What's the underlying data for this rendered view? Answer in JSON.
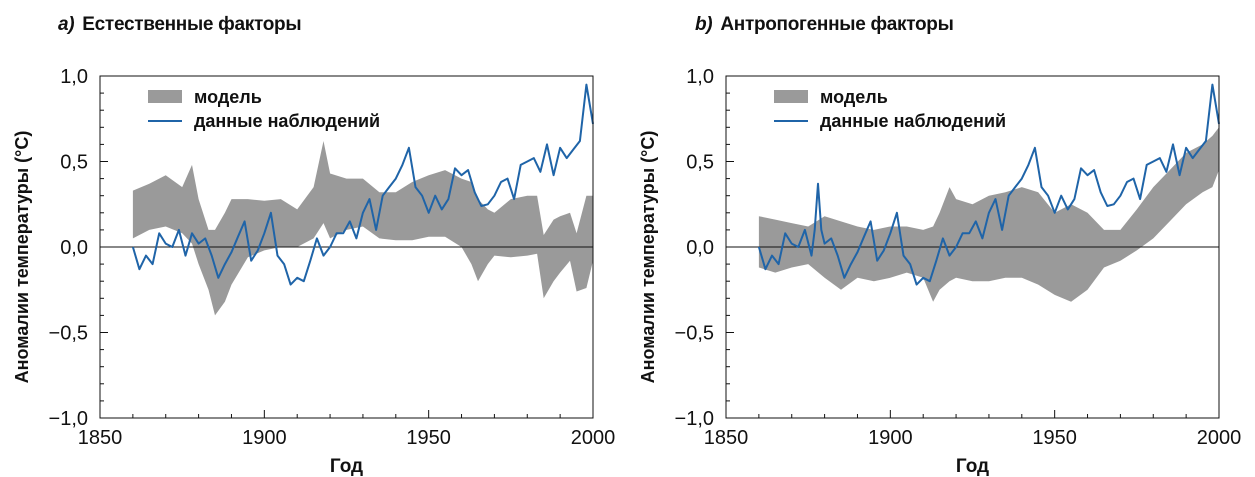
{
  "colors": {
    "model": "#9a9a9a",
    "observations": "#1f64a8",
    "axis": "#111111"
  },
  "chart_data": [
    {
      "type": "area",
      "panel_letter": "a)",
      "title": "Естественные факторы",
      "xlabel": "Год",
      "ylabel": "Аномалии температуры (°C)",
      "xlim": [
        1850,
        2000
      ],
      "ylim": [
        -1.0,
        1.0
      ],
      "xticks": [
        1850,
        1900,
        1950,
        2000
      ],
      "xtick_labels": [
        "1850",
        "1900",
        "1950",
        "2000"
      ],
      "yticks": [
        1.0,
        0.5,
        0.0,
        -0.5,
        -1.0
      ],
      "ytick_labels": [
        "1,0",
        "0,5",
        "0,0",
        "−0,5",
        "−1,0"
      ],
      "legend": {
        "position": "top-left",
        "entries": [
          "модель",
          "данные наблюдений"
        ]
      },
      "series": [
        {
          "name": "модель",
          "kind": "band",
          "x": [
            1860,
            1865,
            1870,
            1875,
            1878,
            1880,
            1883,
            1885,
            1888,
            1890,
            1895,
            1900,
            1905,
            1910,
            1915,
            1918,
            1920,
            1925,
            1930,
            1935,
            1940,
            1945,
            1950,
            1955,
            1960,
            1963,
            1965,
            1968,
            1970,
            1975,
            1980,
            1983,
            1985,
            1988,
            1990,
            1993,
            1995,
            1998,
            2000
          ],
          "upper": [
            0.33,
            0.37,
            0.42,
            0.35,
            0.48,
            0.28,
            0.1,
            0.1,
            0.2,
            0.28,
            0.28,
            0.27,
            0.28,
            0.22,
            0.35,
            0.62,
            0.43,
            0.4,
            0.4,
            0.32,
            0.32,
            0.38,
            0.42,
            0.45,
            0.4,
            0.38,
            0.28,
            0.22,
            0.2,
            0.28,
            0.3,
            0.3,
            0.07,
            0.16,
            0.18,
            0.2,
            0.08,
            0.3,
            0.3
          ],
          "lower": [
            0.05,
            0.1,
            0.12,
            0.08,
            0.02,
            -0.1,
            -0.25,
            -0.4,
            -0.32,
            -0.22,
            -0.06,
            -0.02,
            0.0,
            0.0,
            0.05,
            0.14,
            0.05,
            0.1,
            0.12,
            0.05,
            0.04,
            0.04,
            0.06,
            0.06,
            0.0,
            -0.1,
            -0.2,
            -0.1,
            -0.05,
            -0.06,
            -0.05,
            -0.04,
            -0.3,
            -0.2,
            -0.15,
            -0.08,
            -0.26,
            -0.24,
            -0.08
          ]
        },
        {
          "name": "данные наблюдений",
          "kind": "line",
          "x": [
            1860,
            1862,
            1864,
            1866,
            1868,
            1870,
            1872,
            1874,
            1876,
            1878,
            1880,
            1882,
            1884,
            1886,
            1888,
            1890,
            1892,
            1894,
            1896,
            1898,
            1900,
            1902,
            1904,
            1906,
            1908,
            1910,
            1912,
            1914,
            1916,
            1918,
            1920,
            1922,
            1924,
            1926,
            1928,
            1930,
            1932,
            1934,
            1936,
            1938,
            1940,
            1942,
            1944,
            1946,
            1948,
            1950,
            1952,
            1954,
            1956,
            1958,
            1960,
            1962,
            1964,
            1966,
            1968,
            1970,
            1972,
            1974,
            1976,
            1978,
            1980,
            1982,
            1984,
            1986,
            1988,
            1990,
            1992,
            1994,
            1996,
            1998,
            2000
          ],
          "y": [
            0.0,
            -0.13,
            -0.05,
            -0.1,
            0.08,
            0.02,
            0.0,
            0.1,
            -0.05,
            0.08,
            0.02,
            0.05,
            -0.05,
            -0.18,
            -0.1,
            -0.03,
            0.06,
            0.15,
            -0.08,
            -0.02,
            0.08,
            0.2,
            -0.05,
            -0.1,
            -0.22,
            -0.18,
            -0.2,
            -0.08,
            0.05,
            -0.05,
            0.0,
            0.08,
            0.08,
            0.15,
            0.05,
            0.2,
            0.28,
            0.1,
            0.3,
            0.35,
            0.4,
            0.48,
            0.58,
            0.35,
            0.3,
            0.2,
            0.3,
            0.22,
            0.28,
            0.46,
            0.42,
            0.45,
            0.32,
            0.24,
            0.25,
            0.3,
            0.38,
            0.4,
            0.28,
            0.48,
            0.5,
            0.52,
            0.44,
            0.6,
            0.42,
            0.58,
            0.52,
            0.57,
            0.62,
            0.95,
            0.72
          ]
        }
      ]
    },
    {
      "type": "area",
      "panel_letter": "b)",
      "title": "Антропогенные факторы",
      "xlabel": "Год",
      "ylabel": "Аномалии температуры (°C)",
      "xlim": [
        1850,
        2000
      ],
      "ylim": [
        -1.0,
        1.0
      ],
      "xticks": [
        1850,
        1900,
        1950,
        2000
      ],
      "xtick_labels": [
        "1850",
        "1900",
        "1950",
        "2000"
      ],
      "yticks": [
        1.0,
        0.5,
        0.0,
        -0.5,
        -1.0
      ],
      "ytick_labels": [
        "1,0",
        "0,5",
        "0,0",
        "−0,5",
        "−1,0"
      ],
      "legend": {
        "position": "top-left",
        "entries": [
          "модель",
          "данные наблюдений"
        ]
      },
      "series": [
        {
          "name": "модель",
          "kind": "band",
          "x": [
            1860,
            1865,
            1870,
            1875,
            1880,
            1885,
            1890,
            1895,
            1900,
            1905,
            1910,
            1913,
            1915,
            1918,
            1920,
            1925,
            1930,
            1935,
            1940,
            1945,
            1950,
            1955,
            1960,
            1965,
            1970,
            1975,
            1980,
            1985,
            1990,
            1995,
            1998,
            2000
          ],
          "upper": [
            0.18,
            0.16,
            0.14,
            0.12,
            0.18,
            0.15,
            0.12,
            0.1,
            0.12,
            0.12,
            0.1,
            0.12,
            0.2,
            0.35,
            0.28,
            0.25,
            0.3,
            0.32,
            0.35,
            0.32,
            0.2,
            0.25,
            0.2,
            0.1,
            0.1,
            0.22,
            0.35,
            0.45,
            0.55,
            0.6,
            0.65,
            0.7
          ],
          "lower": [
            -0.12,
            -0.15,
            -0.12,
            -0.1,
            -0.18,
            -0.25,
            -0.18,
            -0.2,
            -0.18,
            -0.15,
            -0.18,
            -0.32,
            -0.25,
            -0.2,
            -0.18,
            -0.2,
            -0.2,
            -0.18,
            -0.18,
            -0.22,
            -0.28,
            -0.32,
            -0.25,
            -0.12,
            -0.08,
            -0.02,
            0.05,
            0.15,
            0.25,
            0.32,
            0.35,
            0.45
          ]
        },
        {
          "name": "данные наблюдений",
          "kind": "line",
          "x": [
            1860,
            1862,
            1864,
            1866,
            1868,
            1870,
            1872,
            1874,
            1876,
            1877,
            1878,
            1879,
            1880,
            1882,
            1884,
            1886,
            1888,
            1890,
            1892,
            1894,
            1896,
            1898,
            1900,
            1902,
            1904,
            1906,
            1908,
            1910,
            1912,
            1914,
            1916,
            1918,
            1920,
            1922,
            1924,
            1926,
            1928,
            1930,
            1932,
            1934,
            1936,
            1938,
            1940,
            1942,
            1944,
            1946,
            1948,
            1950,
            1952,
            1954,
            1956,
            1958,
            1960,
            1962,
            1964,
            1966,
            1968,
            1970,
            1972,
            1974,
            1976,
            1978,
            1980,
            1982,
            1984,
            1986,
            1988,
            1990,
            1992,
            1994,
            1996,
            1998,
            2000
          ],
          "y": [
            0.0,
            -0.13,
            -0.05,
            -0.1,
            0.08,
            0.02,
            0.0,
            0.1,
            -0.05,
            0.1,
            0.37,
            0.1,
            0.02,
            0.05,
            -0.05,
            -0.18,
            -0.1,
            -0.03,
            0.06,
            0.15,
            -0.08,
            -0.02,
            0.08,
            0.2,
            -0.05,
            -0.1,
            -0.22,
            -0.18,
            -0.2,
            -0.08,
            0.05,
            -0.05,
            0.0,
            0.08,
            0.08,
            0.15,
            0.05,
            0.2,
            0.28,
            0.1,
            0.3,
            0.35,
            0.4,
            0.48,
            0.58,
            0.35,
            0.3,
            0.2,
            0.3,
            0.22,
            0.28,
            0.46,
            0.42,
            0.45,
            0.32,
            0.24,
            0.25,
            0.3,
            0.38,
            0.4,
            0.28,
            0.48,
            0.5,
            0.52,
            0.44,
            0.6,
            0.42,
            0.58,
            0.52,
            0.57,
            0.62,
            0.95,
            0.72
          ]
        }
      ]
    }
  ]
}
